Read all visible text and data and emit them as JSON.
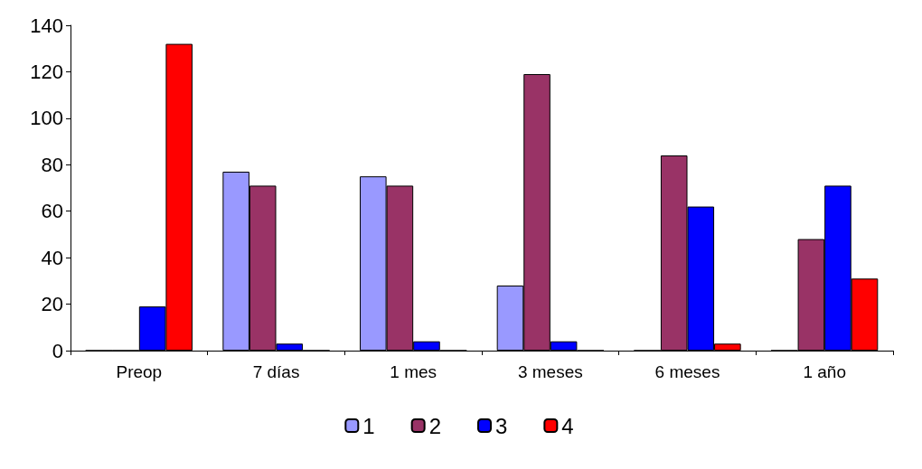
{
  "chart_data": {
    "type": "bar",
    "categories": [
      "Preop",
      "7 días",
      "1 mes",
      "3 meses",
      "6 meses",
      "1 año"
    ],
    "series": [
      {
        "name": "1",
        "color": "#9999ff",
        "values": [
          0,
          77,
          75,
          28,
          0,
          0
        ]
      },
      {
        "name": "2",
        "color": "#993366",
        "values": [
          0,
          71,
          71,
          119,
          84,
          48
        ]
      },
      {
        "name": "3",
        "color": "#0000ff",
        "values": [
          19,
          3,
          4,
          4,
          62,
          71
        ]
      },
      {
        "name": "4",
        "color": "#ff0000",
        "values": [
          132,
          0,
          0,
          0,
          3,
          31
        ]
      }
    ],
    "ylim": [
      0,
      140
    ],
    "yticks": [
      0,
      20,
      40,
      60,
      80,
      100,
      120,
      140
    ],
    "grid": false,
    "legend": "bottom"
  }
}
